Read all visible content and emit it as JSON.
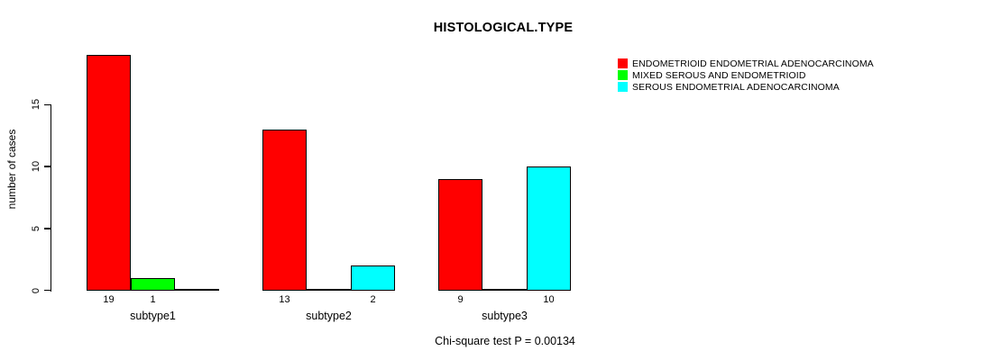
{
  "title": "HISTOLOGICAL.TYPE",
  "footer_annotation": "Chi-square test P = 0.00134",
  "y_axis": {
    "label": "number of cases",
    "ticks": [
      0,
      5,
      10,
      15
    ]
  },
  "legend": {
    "items": [
      {
        "label": "ENDOMETRIOID ENDOMETRIAL ADENOCARCINOMA",
        "color": "#FF0000"
      },
      {
        "label": "MIXED SEROUS AND ENDOMETRIOID",
        "color": "#00FF00"
      },
      {
        "label": "SEROUS ENDOMETRIAL ADENOCARCINOMA",
        "color": "#00FFFF"
      }
    ]
  },
  "chart_data": {
    "type": "bar",
    "title": "HISTOLOGICAL.TYPE",
    "xlabel": "",
    "ylabel": "number of cases",
    "ylim": [
      0,
      19
    ],
    "yticks": [
      0,
      5,
      10,
      15
    ],
    "grid": false,
    "legend_position": "top-right",
    "categories": [
      "subtype1",
      "subtype2",
      "subtype3"
    ],
    "series": [
      {
        "name": "ENDOMETRIOID ENDOMETRIAL ADENOCARCINOMA",
        "color": "#FF0000",
        "values": [
          19,
          13,
          9
        ]
      },
      {
        "name": "MIXED SEROUS AND ENDOMETRIOID",
        "color": "#00FF00",
        "values": [
          1,
          0,
          0
        ]
      },
      {
        "name": "SEROUS ENDOMETRIAL ADENOCARCINOMA",
        "color": "#00FFFF",
        "values": [
          0,
          2,
          10
        ]
      }
    ],
    "bar_value_labels": {
      "subtype1": [
        19,
        1
      ],
      "subtype2": [
        13,
        2
      ],
      "subtype3": [
        9,
        10
      ]
    },
    "annotation": "Chi-square test P = 0.00134"
  }
}
